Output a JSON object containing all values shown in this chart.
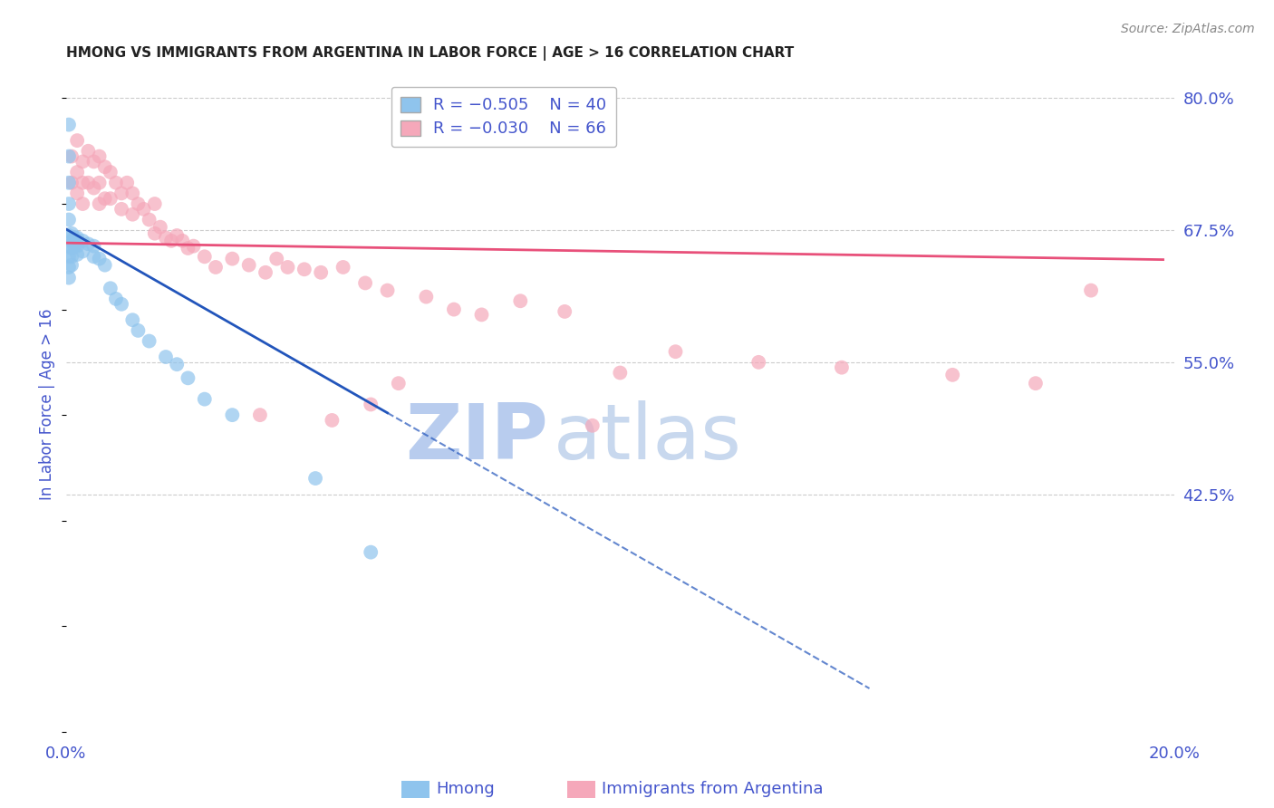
{
  "title": "HMONG VS IMMIGRANTS FROM ARGENTINA IN LABOR FORCE | AGE > 16 CORRELATION CHART",
  "source": "Source: ZipAtlas.com",
  "ylabel": "In Labor Force | Age > 16",
  "x_min": 0.0,
  "x_max": 0.2,
  "y_min": 0.195,
  "y_max": 0.825,
  "right_yticks": [
    0.8,
    0.675,
    0.55,
    0.425
  ],
  "right_yticklabels": [
    "80.0%",
    "67.5%",
    "55.0%",
    "42.5%"
  ],
  "grid_color": "#cccccc",
  "background_color": "#ffffff",
  "watermark_zip": "ZIP",
  "watermark_atlas": "atlas",
  "watermark_color": "#c8dff5",
  "legend_R1": "R = −0.505",
  "legend_N1": "N = 40",
  "legend_R2": "R = −0.030",
  "legend_N2": "N = 66",
  "hmong_color": "#8fc4ed",
  "argentina_color": "#f5a8ba",
  "hmong_line_color": "#2255bb",
  "argentina_line_color": "#e8507a",
  "title_color": "#222222",
  "source_color": "#888888",
  "axis_label_color": "#4455cc",
  "tick_color": "#4455cc",
  "hmong_scatter_x": [
    0.0005,
    0.0005,
    0.0005,
    0.0005,
    0.0005,
    0.0005,
    0.0005,
    0.0005,
    0.0005,
    0.0005,
    0.001,
    0.001,
    0.001,
    0.001,
    0.001,
    0.0015,
    0.0015,
    0.002,
    0.002,
    0.002,
    0.003,
    0.003,
    0.004,
    0.005,
    0.005,
    0.006,
    0.007,
    0.008,
    0.009,
    0.01,
    0.012,
    0.013,
    0.015,
    0.018,
    0.02,
    0.022,
    0.025,
    0.03,
    0.045,
    0.055
  ],
  "hmong_scatter_y": [
    0.775,
    0.745,
    0.72,
    0.7,
    0.685,
    0.67,
    0.66,
    0.65,
    0.64,
    0.63,
    0.672,
    0.665,
    0.658,
    0.65,
    0.642,
    0.668,
    0.66,
    0.668,
    0.66,
    0.652,
    0.665,
    0.655,
    0.662,
    0.66,
    0.65,
    0.648,
    0.642,
    0.62,
    0.61,
    0.605,
    0.59,
    0.58,
    0.57,
    0.555,
    0.548,
    0.535,
    0.515,
    0.5,
    0.44,
    0.37
  ],
  "argentina_scatter_x": [
    0.001,
    0.001,
    0.002,
    0.002,
    0.002,
    0.003,
    0.003,
    0.003,
    0.004,
    0.004,
    0.005,
    0.005,
    0.006,
    0.006,
    0.006,
    0.007,
    0.007,
    0.008,
    0.008,
    0.009,
    0.01,
    0.01,
    0.011,
    0.012,
    0.012,
    0.013,
    0.014,
    0.015,
    0.016,
    0.016,
    0.017,
    0.018,
    0.019,
    0.02,
    0.021,
    0.022,
    0.023,
    0.025,
    0.027,
    0.03,
    0.033,
    0.036,
    0.038,
    0.04,
    0.043,
    0.046,
    0.05,
    0.054,
    0.058,
    0.06,
    0.065,
    0.07,
    0.075,
    0.082,
    0.09,
    0.1,
    0.11,
    0.125,
    0.14,
    0.16,
    0.175,
    0.185,
    0.095,
    0.035,
    0.055,
    0.048
  ],
  "argentina_scatter_y": [
    0.745,
    0.72,
    0.76,
    0.73,
    0.71,
    0.74,
    0.72,
    0.7,
    0.75,
    0.72,
    0.74,
    0.715,
    0.745,
    0.72,
    0.7,
    0.735,
    0.705,
    0.73,
    0.705,
    0.72,
    0.71,
    0.695,
    0.72,
    0.71,
    0.69,
    0.7,
    0.695,
    0.685,
    0.7,
    0.672,
    0.678,
    0.668,
    0.665,
    0.67,
    0.665,
    0.658,
    0.66,
    0.65,
    0.64,
    0.648,
    0.642,
    0.635,
    0.648,
    0.64,
    0.638,
    0.635,
    0.64,
    0.625,
    0.618,
    0.53,
    0.612,
    0.6,
    0.595,
    0.608,
    0.598,
    0.54,
    0.56,
    0.55,
    0.545,
    0.538,
    0.53,
    0.618,
    0.49,
    0.5,
    0.51,
    0.495
  ],
  "hmong_trend_x0": 0.0,
  "hmong_trend_y0": 0.676,
  "hmong_trend_slope": -3.0,
  "hmong_solid_xend": 0.058,
  "hmong_dashed_xend": 0.145,
  "argentina_trend_x0": 0.0,
  "argentina_trend_y0": 0.663,
  "argentina_trend_slope": -0.08,
  "argentina_trend_xend": 0.198
}
